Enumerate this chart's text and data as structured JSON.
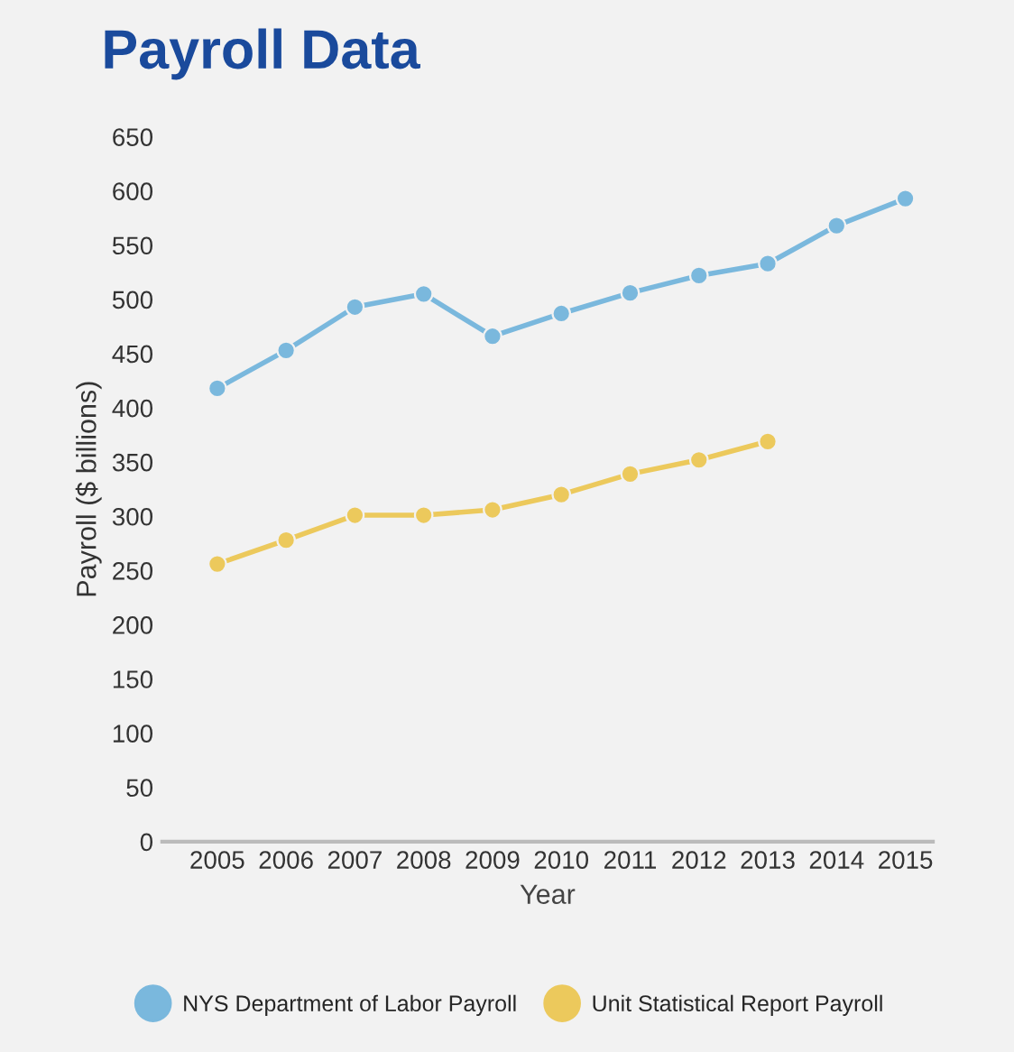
{
  "chart_data": {
    "type": "line",
    "title": "Payroll Data",
    "xlabel": "Year",
    "ylabel": "Payroll ($ billions)",
    "categories": [
      "2005",
      "2006",
      "2007",
      "2008",
      "2009",
      "2010",
      "2011",
      "2012",
      "2013",
      "2014",
      "2015"
    ],
    "series": [
      {
        "name": "NYS Department of Labor Payroll",
        "color": "#7ab8dd",
        "values": [
          418,
          453,
          493,
          505,
          466,
          487,
          506,
          522,
          533,
          568,
          593
        ]
      },
      {
        "name": "Unit Statistical Report Payroll",
        "color": "#ecc95c",
        "values": [
          256,
          278,
          301,
          301,
          306,
          320,
          339,
          352,
          369,
          null,
          null
        ]
      }
    ],
    "ylim": [
      0,
      650
    ],
    "yticks": [
      0,
      50,
      100,
      150,
      200,
      250,
      300,
      350,
      400,
      450,
      500,
      550,
      600,
      650
    ],
    "grid": false,
    "legend": "bottom",
    "marker": "circle",
    "line_style": "solid"
  }
}
